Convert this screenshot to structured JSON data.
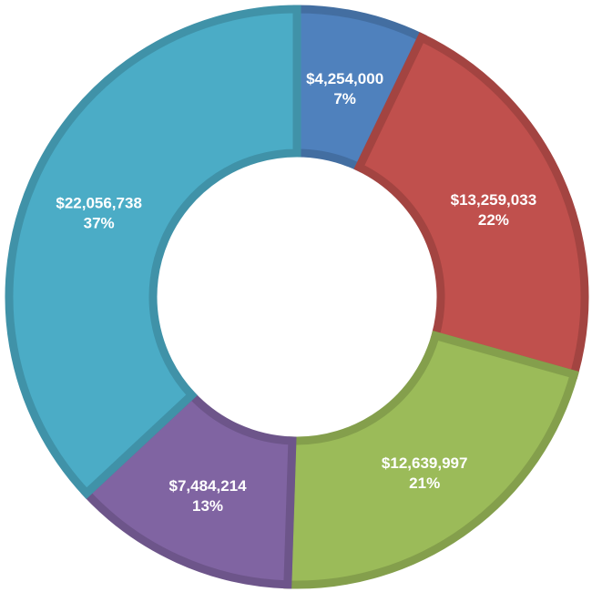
{
  "chart_data": {
    "type": "pie",
    "variant": "donut",
    "title": "",
    "slices": [
      {
        "value_label": "$4,254,000",
        "value": 4254000,
        "percent_label": "7%",
        "percent": 7,
        "color": "#4F81BD"
      },
      {
        "value_label": "$13,259,033",
        "value": 13259033,
        "percent_label": "22%",
        "percent": 22,
        "color": "#C0504D"
      },
      {
        "value_label": "$12,639,997",
        "value": 12639997,
        "percent_label": "21%",
        "percent": 21,
        "color": "#9BBB59"
      },
      {
        "value_label": "$7,484,214",
        "value": 7484214,
        "percent_label": "13%",
        "percent": 13,
        "color": "#8064A2"
      },
      {
        "value_label": "$22,056,738",
        "value": 22056738,
        "percent_label": "37%",
        "percent": 37,
        "color": "#4BACC6"
      }
    ],
    "start_angle_deg": 0,
    "direction": "clockwise",
    "legend": "none"
  }
}
